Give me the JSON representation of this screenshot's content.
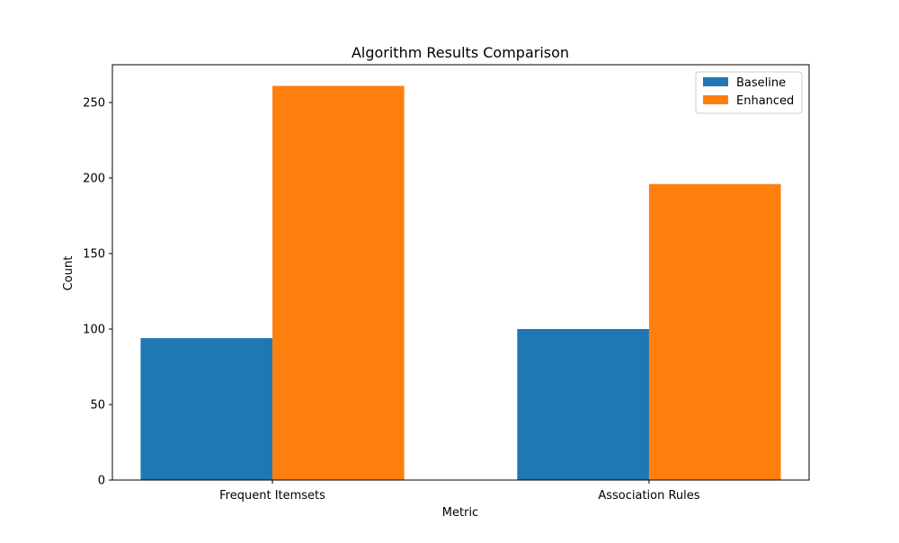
{
  "chart_data": {
    "type": "bar",
    "title": "Algorithm Results Comparison",
    "xlabel": "Metric",
    "ylabel": "Count",
    "categories": [
      "Frequent Itemsets",
      "Association Rules"
    ],
    "series": [
      {
        "name": "Baseline",
        "values": [
          94,
          100
        ],
        "color": "#1f77b4"
      },
      {
        "name": "Enhanced",
        "values": [
          261,
          196
        ],
        "color": "#ff7f0e"
      }
    ],
    "ylim": [
      0,
      275
    ],
    "yticks": [
      0,
      50,
      100,
      150,
      200,
      250
    ],
    "grid": false,
    "legend_position": "top-right"
  }
}
